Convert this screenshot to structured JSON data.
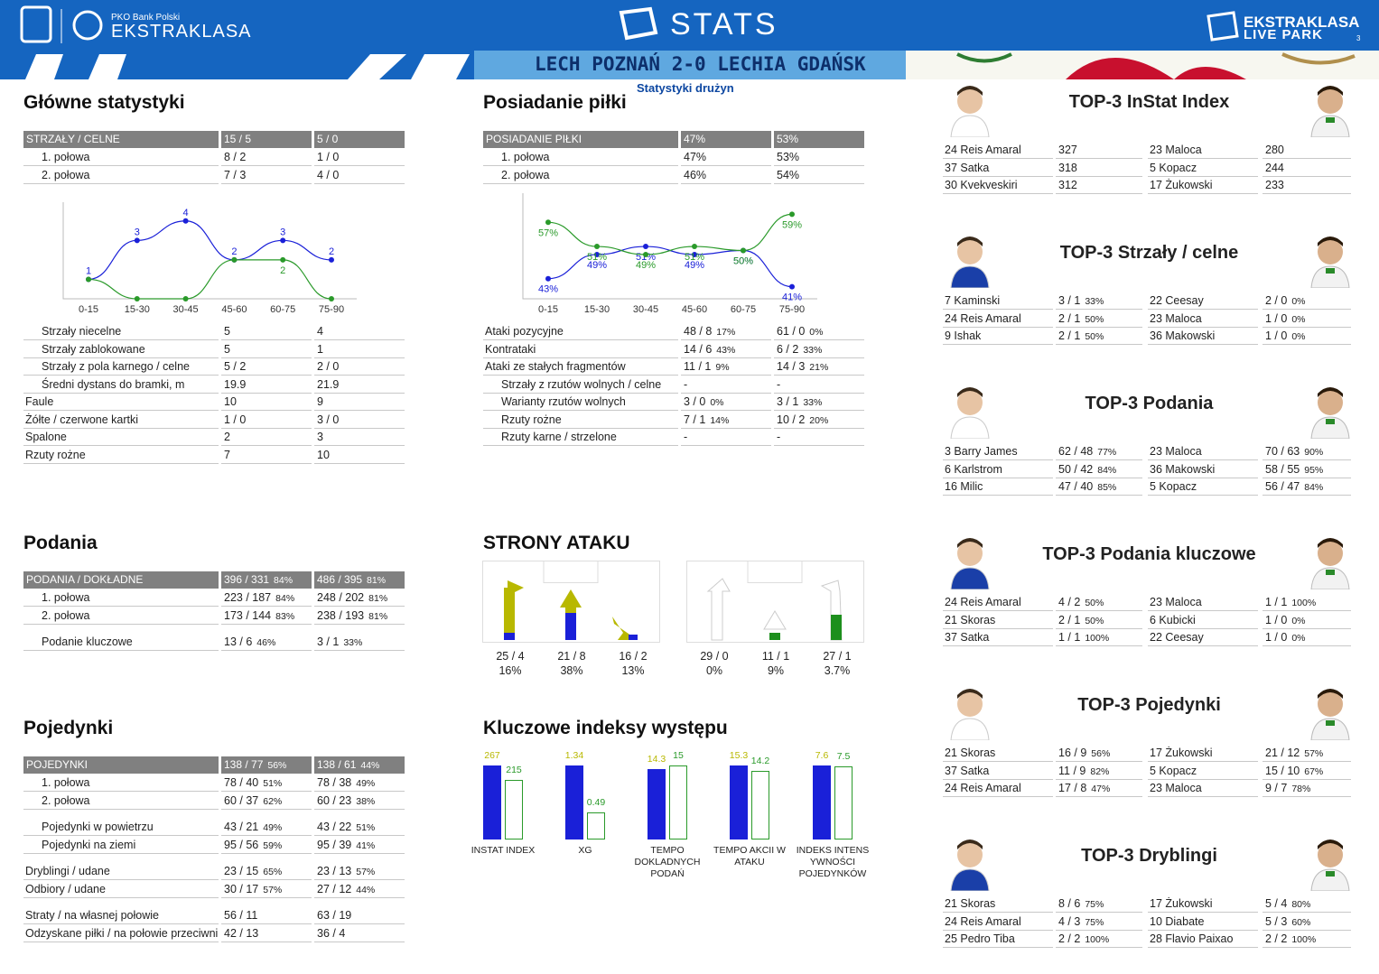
{
  "header": {
    "pko_small": "PKO Bank Polski",
    "pko_big": "EKSTRAKLASA",
    "stats": "STATS",
    "brand_top": "EKSTRAKLASA",
    "brand_bottom": "LIVE PARK",
    "match": "LECH POZNAŃ 2-0 LECHIA GDAŃSK",
    "page_num": "3",
    "subtitle": "Statystyki drużyn"
  },
  "colors": {
    "header_blue": "#1565c0",
    "home": "#1a20d8",
    "away": "#2a9a2a",
    "away_fill": "#1d8f1d",
    "yellow": "#b8b800",
    "grey_header": "#808080"
  },
  "main_stats": {
    "title": "Główne statystyki",
    "header": [
      "STRZAŁY / CELNE",
      "15 / 5",
      "5 / 0"
    ],
    "halves": [
      [
        "1. połowa",
        "8 / 2",
        "1 / 0"
      ],
      [
        "2. połowa",
        "7 / 3",
        "4 / 0"
      ]
    ],
    "rows": [
      [
        "Strzały niecelne",
        "5",
        "4"
      ],
      [
        "Strzały zablokowane",
        "5",
        "1"
      ],
      [
        "Strzały z pola karnego / celne",
        "5 / 2",
        "2 / 0"
      ],
      [
        "Średni dystans do bramki, m",
        "19.9",
        "21.9"
      ],
      [
        "Faule",
        "10",
        "9"
      ],
      [
        "Żółte / czerwone kartki",
        "1 / 0",
        "3 / 0"
      ],
      [
        "Spalone",
        "2",
        "3"
      ],
      [
        "Rzuty rożne",
        "7",
        "10"
      ]
    ]
  },
  "possession": {
    "title": "Posiadanie piłki",
    "header": [
      "POSIADANIE PIŁKI",
      "47%",
      "53%"
    ],
    "halves": [
      [
        "1. połowa",
        "47%",
        "53%"
      ],
      [
        "2. połowa",
        "46%",
        "54%"
      ]
    ],
    "rows": [
      [
        "Ataki pozycyjne",
        "48 / 8",
        "17%",
        "61 / 0",
        "0%"
      ],
      [
        "Kontrataki",
        "14 / 6",
        "43%",
        "6 / 2",
        "33%"
      ],
      [
        "Ataki ze stałych fragmentów",
        "11 / 1",
        "9%",
        "14 / 3",
        "21%"
      ],
      [
        "Strzały z rzutów wolnych / celne",
        "-",
        "",
        "-",
        ""
      ],
      [
        "Warianty rzutów wolnych",
        "3 / 0",
        "0%",
        "3 / 1",
        "33%"
      ],
      [
        "Rzuty rożne",
        "7 / 1",
        "14%",
        "10 / 2",
        "20%"
      ],
      [
        "Rzuty karne / strzelone",
        "-",
        "",
        "-",
        ""
      ]
    ]
  },
  "passes": {
    "title": "Podania",
    "header": [
      "PODANIA / DOKŁADNE",
      "396 / 331",
      "84%",
      "486 / 395",
      "81%"
    ],
    "rows": [
      [
        "1. połowa",
        "223 / 187",
        "84%",
        "248 / 202",
        "81%"
      ],
      [
        "2. połowa",
        "173 / 144",
        "83%",
        "238 / 193",
        "81%"
      ],
      [
        "Podanie kluczowe",
        "13 / 6",
        "46%",
        "3 / 1",
        "33%"
      ]
    ]
  },
  "duels": {
    "title": "Pojedynki",
    "header": [
      "POJEDYNKI",
      "138 / 77",
      "56%",
      "138 / 61",
      "44%"
    ],
    "rows": [
      [
        "1. połowa",
        "78 / 40",
        "51%",
        "78 / 38",
        "49%"
      ],
      [
        "2. połowa",
        "60 / 37",
        "62%",
        "60 / 23",
        "38%"
      ],
      [
        "Pojedynki w powietrzu",
        "43 / 21",
        "49%",
        "43 / 22",
        "51%"
      ],
      [
        "Pojedynki na ziemi",
        "95 / 56",
        "59%",
        "95 / 39",
        "41%"
      ],
      [
        "Dryblingi / udane",
        "23 / 15",
        "65%",
        "23 / 13",
        "57%"
      ],
      [
        "Odbiory / udane",
        "30 / 17",
        "57%",
        "27 / 12",
        "44%"
      ],
      [
        "Straty / na własnej połowie",
        "56 / 11",
        "",
        "63 / 19",
        ""
      ],
      [
        "Odzyskane piłki / na połowie przeciwnika",
        "42 / 13",
        "",
        "36 / 4",
        ""
      ]
    ]
  },
  "attack": {
    "title": "STRONY ATAKU",
    "home": [
      {
        "v": "25 / 4",
        "p": "16%"
      },
      {
        "v": "21 / 8",
        "p": "38%"
      },
      {
        "v": "16 / 2",
        "p": "13%"
      }
    ],
    "away": [
      {
        "v": "29 / 0",
        "p": "0%"
      },
      {
        "v": "11 / 1",
        "p": "9%"
      },
      {
        "v": "27 / 1",
        "p": "3.7%"
      }
    ]
  },
  "key_index": {
    "title": "Kluczowe indeksy występu",
    "items": [
      {
        "label": "INSTAT INDEX",
        "home": "267",
        "away": "215"
      },
      {
        "label": "XG",
        "home": "1.34",
        "away": "0.49"
      },
      {
        "label": "TEMPO DOKLADNYCH PODAŃ",
        "home": "14.3",
        "away": "15"
      },
      {
        "label": "TEMPO AKCII W ATAKU",
        "home": "15.3",
        "away": "14.2"
      },
      {
        "label": "INDEKS INTENS YWNOŚCI POJEDYNKÓW",
        "home": "7.6",
        "away": "7.5"
      }
    ]
  },
  "top3": [
    {
      "title": "TOP-3 InStat Index",
      "rows": [
        [
          "24 Reis Amaral",
          "327",
          "",
          "23 Maloca",
          "280",
          ""
        ],
        [
          "37 Satka",
          "318",
          "",
          "5  Kopacz",
          "244",
          ""
        ],
        [
          "30 Kvekveskiri",
          "312",
          "",
          "17 Żukowski",
          "233",
          ""
        ]
      ]
    },
    {
      "title": "TOP-3 Strzały / celne",
      "rows": [
        [
          "7  Kaminski",
          "3 / 1",
          "33%",
          "22 Ceesay",
          "2 / 0",
          "0%"
        ],
        [
          "24 Reis Amaral",
          "2 / 1",
          "50%",
          "23 Maloca",
          "1 / 0",
          "0%"
        ],
        [
          "9  Ishak",
          "2 / 1",
          "50%",
          "36 Makowski",
          "1 / 0",
          "0%"
        ]
      ]
    },
    {
      "title": "TOP-3 Podania",
      "rows": [
        [
          "3  Barry James",
          "62 / 48",
          "77%",
          "23 Maloca",
          "70 / 63",
          "90%"
        ],
        [
          "6  Karlstrom",
          "50 / 42",
          "84%",
          "36 Makowski",
          "58 / 55",
          "95%"
        ],
        [
          "16 Milic",
          "47 / 40",
          "85%",
          "5  Kopacz",
          "56 / 47",
          "84%"
        ]
      ]
    },
    {
      "title": "TOP-3 Podania kluczowe",
      "rows": [
        [
          "24 Reis Amaral",
          "4 / 2",
          "50%",
          "23 Maloca",
          "1 / 1",
          "100%"
        ],
        [
          "21 Skoras",
          "2 / 1",
          "50%",
          "6  Kubicki",
          "1 / 0",
          "0%"
        ],
        [
          "37 Satka",
          "1 / 1",
          "100%",
          "22 Ceesay",
          "1 / 0",
          "0%"
        ]
      ]
    },
    {
      "title": "TOP-3 Pojedynki",
      "rows": [
        [
          "21 Skoras",
          "16 / 9",
          "56%",
          "17 Żukowski",
          "21 / 12",
          "57%"
        ],
        [
          "37 Satka",
          "11 / 9",
          "82%",
          "5  Kopacz",
          "15 / 10",
          "67%"
        ],
        [
          "24 Reis Amaral",
          "17 / 8",
          "47%",
          "23 Maloca",
          "9 / 7",
          "78%"
        ]
      ]
    },
    {
      "title": "TOP-3 Dryblingi",
      "rows": [
        [
          "21 Skoras",
          "8 / 6",
          "75%",
          "17 Żukowski",
          "5 / 4",
          "80%"
        ],
        [
          "24 Reis Amaral",
          "4 / 3",
          "75%",
          "10 Diabate",
          "5 / 3",
          "60%"
        ],
        [
          "25 Pedro Tiba",
          "2 / 2",
          "100%",
          "28 Flavio Paixao",
          "2 / 2",
          "100%"
        ]
      ]
    }
  ],
  "chart_data": [
    {
      "type": "line",
      "title": "",
      "categories": [
        "0-15",
        "15-30",
        "30-45",
        "45-60",
        "60-75",
        "75-90"
      ],
      "series": [
        {
          "values": [
            1,
            3,
            4,
            2,
            3,
            2
          ]
        },
        {
          "values": [
            1,
            0,
            0,
            2,
            2,
            0
          ]
        }
      ],
      "ylim": [
        0,
        4.5
      ]
    },
    {
      "type": "line",
      "title": "",
      "categories": [
        "0-15",
        "15-30",
        "30-45",
        "45-60",
        "60-75",
        "75-90"
      ],
      "series": [
        {
          "values": [
            43,
            49,
            51,
            49,
            50,
            41
          ]
        },
        {
          "values": [
            57,
            51,
            49,
            51,
            50,
            59
          ]
        }
      ],
      "ylim": [
        38,
        62
      ]
    }
  ]
}
